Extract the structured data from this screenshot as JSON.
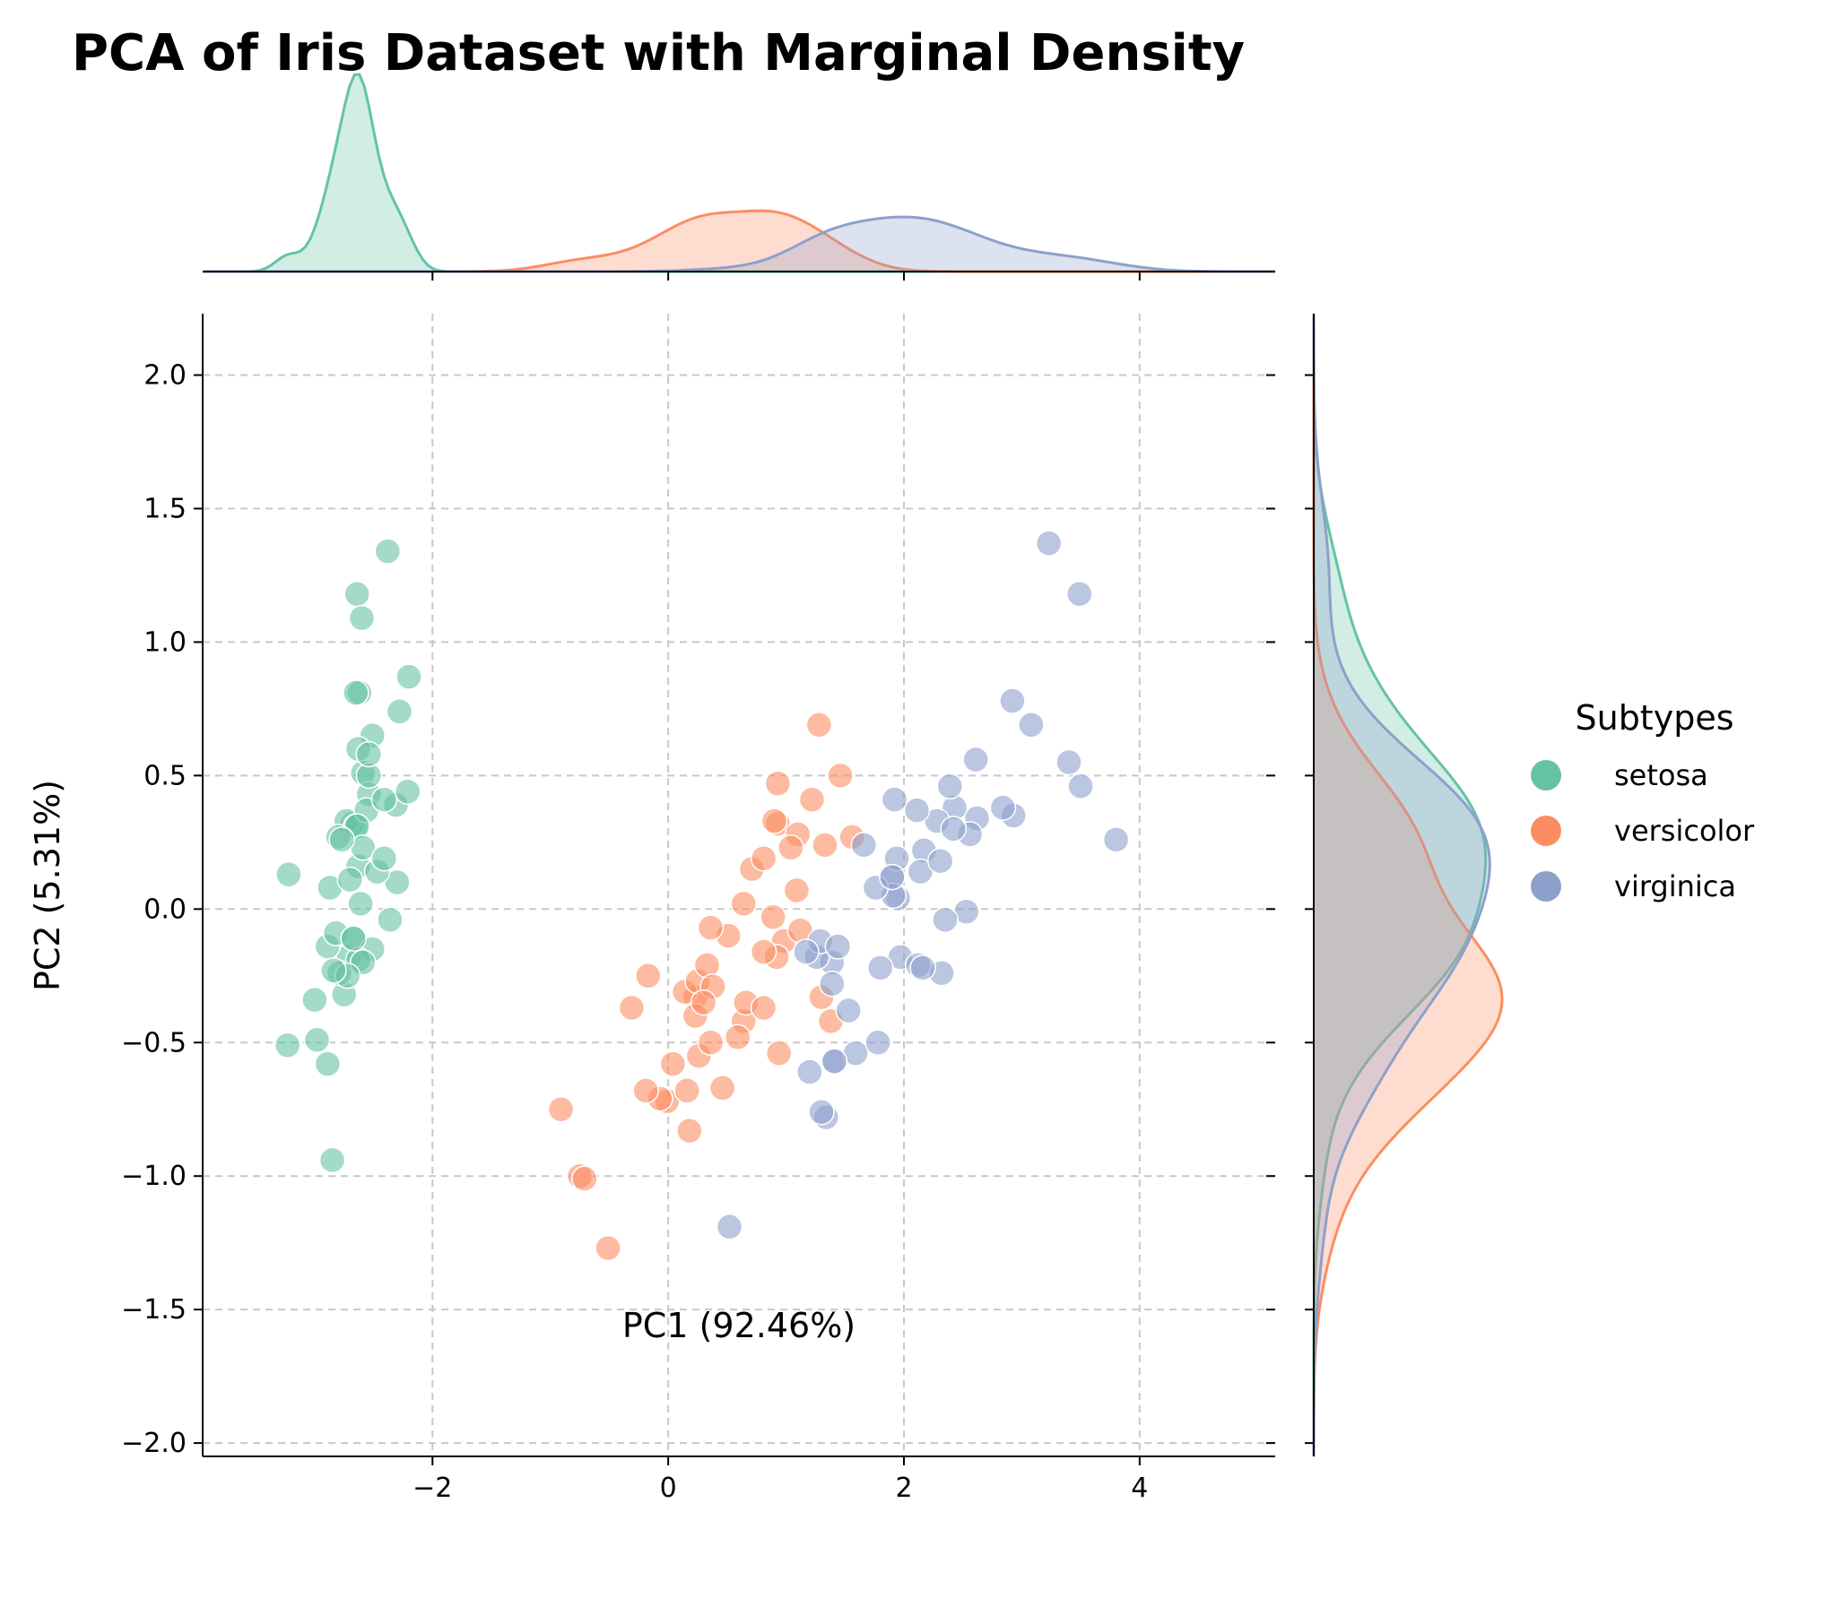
{
  "chart_data": {
    "type": "scatter",
    "title": "PCA of Iris Dataset with Marginal Density",
    "xlabel": "PC1 (92.46%)",
    "ylabel": "PC2 (5.31%)",
    "xlim": [
      -3.95,
      5.15
    ],
    "ylim": [
      -2.05,
      2.23
    ],
    "xticks": [
      -2,
      0,
      2,
      4
    ],
    "xtick_labels": [
      "−2",
      "0",
      "2",
      "4"
    ],
    "yticks": [
      2.0,
      1.5,
      1.0,
      0.5,
      0.0,
      -0.5,
      -1.0,
      -1.5,
      -2.0
    ],
    "ytick_labels": [
      "2.0",
      "1.5",
      "1.0",
      "0.5",
      "0.0",
      "−0.5",
      "−1.0",
      "−1.5",
      "−2.0"
    ],
    "grid": true,
    "grid_style": "dashed",
    "legend": {
      "title": "Subtypes",
      "position": "right"
    },
    "marginal": "kde",
    "series": [
      {
        "name": "setosa",
        "color": "#66c2a5",
        "points": [
          [
            -2.68,
            0.32
          ],
          [
            -2.71,
            -0.18
          ],
          [
            -2.89,
            -0.14
          ],
          [
            -2.75,
            -0.32
          ],
          [
            -2.73,
            0.33
          ],
          [
            -2.28,
            0.74
          ],
          [
            -2.82,
            -0.09
          ],
          [
            -2.63,
            0.16
          ],
          [
            -2.89,
            -0.58
          ],
          [
            -2.67,
            -0.11
          ],
          [
            -2.51,
            0.65
          ],
          [
            -2.61,
            0.02
          ],
          [
            -2.79,
            -0.24
          ],
          [
            -3.23,
            -0.51
          ],
          [
            -2.64,
            1.18
          ],
          [
            -2.38,
            1.34
          ],
          [
            -2.62,
            0.81
          ],
          [
            -2.65,
            0.31
          ],
          [
            -2.2,
            0.87
          ],
          [
            -2.59,
            0.51
          ],
          [
            -2.31,
            0.39
          ],
          [
            -2.54,
            0.43
          ],
          [
            -3.22,
            0.13
          ],
          [
            -2.3,
            0.1
          ],
          [
            -2.36,
            -0.04
          ],
          [
            -2.51,
            -0.15
          ],
          [
            -2.47,
            0.14
          ],
          [
            -2.56,
            0.37
          ],
          [
            -2.64,
            0.31
          ],
          [
            -2.63,
            -0.19
          ],
          [
            -2.59,
            -0.2
          ],
          [
            -2.41,
            0.41
          ],
          [
            -2.65,
            0.81
          ],
          [
            -2.6,
            1.09
          ],
          [
            -2.67,
            -0.11
          ],
          [
            -2.87,
            0.08
          ],
          [
            -2.63,
            0.6
          ],
          [
            -2.8,
            0.27
          ],
          [
            -2.98,
            -0.49
          ],
          [
            -2.59,
            0.23
          ],
          [
            -2.77,
            0.26
          ],
          [
            -2.85,
            -0.94
          ],
          [
            -3.0,
            -0.34
          ],
          [
            -2.41,
            0.19
          ],
          [
            -2.21,
            0.44
          ],
          [
            -2.72,
            -0.25
          ],
          [
            -2.54,
            0.5
          ],
          [
            -2.84,
            -0.23
          ],
          [
            -2.54,
            0.58
          ],
          [
            -2.7,
            0.11
          ]
        ]
      },
      {
        "name": "versicolor",
        "color": "#fc8d62",
        "points": [
          [
            1.28,
            0.69
          ],
          [
            0.93,
            0.32
          ],
          [
            1.46,
            0.5
          ],
          [
            0.18,
            -0.83
          ],
          [
            1.09,
            0.07
          ],
          [
            0.64,
            -0.42
          ],
          [
            1.1,
            0.28
          ],
          [
            -0.75,
            -1.0
          ],
          [
            1.04,
            0.23
          ],
          [
            -0.01,
            -0.72
          ],
          [
            -0.51,
            -1.27
          ],
          [
            0.51,
            -0.1
          ],
          [
            0.26,
            -0.55
          ],
          [
            0.98,
            -0.12
          ],
          [
            -0.17,
            -0.25
          ],
          [
            0.93,
            0.47
          ],
          [
            0.66,
            -0.35
          ],
          [
            0.23,
            -0.33
          ],
          [
            0.94,
            -0.54
          ],
          [
            0.04,
            -0.58
          ],
          [
            1.12,
            -0.08
          ],
          [
            0.36,
            -0.07
          ],
          [
            1.3,
            -0.33
          ],
          [
            0.92,
            -0.18
          ],
          [
            0.71,
            0.15
          ],
          [
            0.9,
            0.33
          ],
          [
            1.33,
            0.24
          ],
          [
            1.56,
            0.27
          ],
          [
            0.81,
            -0.16
          ],
          [
            -0.31,
            -0.37
          ],
          [
            -0.07,
            -0.71
          ],
          [
            -0.19,
            -0.68
          ],
          [
            0.14,
            -0.31
          ],
          [
            1.38,
            -0.42
          ],
          [
            0.59,
            -0.48
          ],
          [
            0.81,
            0.19
          ],
          [
            1.22,
            0.41
          ],
          [
            0.81,
            -0.37
          ],
          [
            0.25,
            -0.27
          ],
          [
            0.16,
            -0.68
          ],
          [
            0.46,
            -0.67
          ],
          [
            0.89,
            -0.03
          ],
          [
            0.23,
            -0.4
          ],
          [
            -0.71,
            -1.01
          ],
          [
            0.36,
            -0.5
          ],
          [
            0.33,
            -0.21
          ],
          [
            0.38,
            -0.29
          ],
          [
            0.64,
            0.02
          ],
          [
            -0.91,
            -0.75
          ],
          [
            0.3,
            -0.35
          ]
        ]
      },
      {
        "name": "virginica",
        "color": "#8da0cb",
        "points": [
          [
            2.53,
            -0.01
          ],
          [
            1.41,
            -0.57
          ],
          [
            2.62,
            0.34
          ],
          [
            1.97,
            -0.18
          ],
          [
            2.35,
            -0.04
          ],
          [
            3.4,
            0.55
          ],
          [
            0.52,
            -1.19
          ],
          [
            2.93,
            0.35
          ],
          [
            2.32,
            -0.24
          ],
          [
            2.92,
            0.78
          ],
          [
            1.66,
            0.24
          ],
          [
            1.8,
            -0.22
          ],
          [
            2.17,
            0.22
          ],
          [
            1.34,
            -0.78
          ],
          [
            1.59,
            -0.54
          ],
          [
            1.9,
            0.12
          ],
          [
            1.95,
            0.04
          ],
          [
            3.49,
            1.18
          ],
          [
            3.8,
            0.26
          ],
          [
            1.3,
            -0.76
          ],
          [
            2.43,
            0.38
          ],
          [
            1.2,
            -0.61
          ],
          [
            3.5,
            0.46
          ],
          [
            1.39,
            -0.2
          ],
          [
            2.28,
            0.33
          ],
          [
            2.61,
            0.56
          ],
          [
            1.26,
            -0.18
          ],
          [
            1.29,
            -0.12
          ],
          [
            2.12,
            -0.21
          ],
          [
            2.39,
            0.46
          ],
          [
            2.84,
            0.38
          ],
          [
            3.23,
            1.37
          ],
          [
            2.16,
            -0.22
          ],
          [
            1.44,
            -0.14
          ],
          [
            1.78,
            -0.5
          ],
          [
            3.08,
            0.69
          ],
          [
            2.14,
            0.14
          ],
          [
            1.91,
            0.05
          ],
          [
            1.17,
            -0.16
          ],
          [
            2.11,
            0.37
          ],
          [
            2.31,
            0.18
          ],
          [
            1.92,
            0.41
          ],
          [
            1.41,
            -0.57
          ],
          [
            2.56,
            0.28
          ],
          [
            2.42,
            0.3
          ],
          [
            1.94,
            0.19
          ],
          [
            1.53,
            -0.38
          ],
          [
            1.76,
            0.08
          ],
          [
            1.9,
            0.12
          ],
          [
            1.39,
            -0.28
          ]
        ]
      }
    ]
  }
}
